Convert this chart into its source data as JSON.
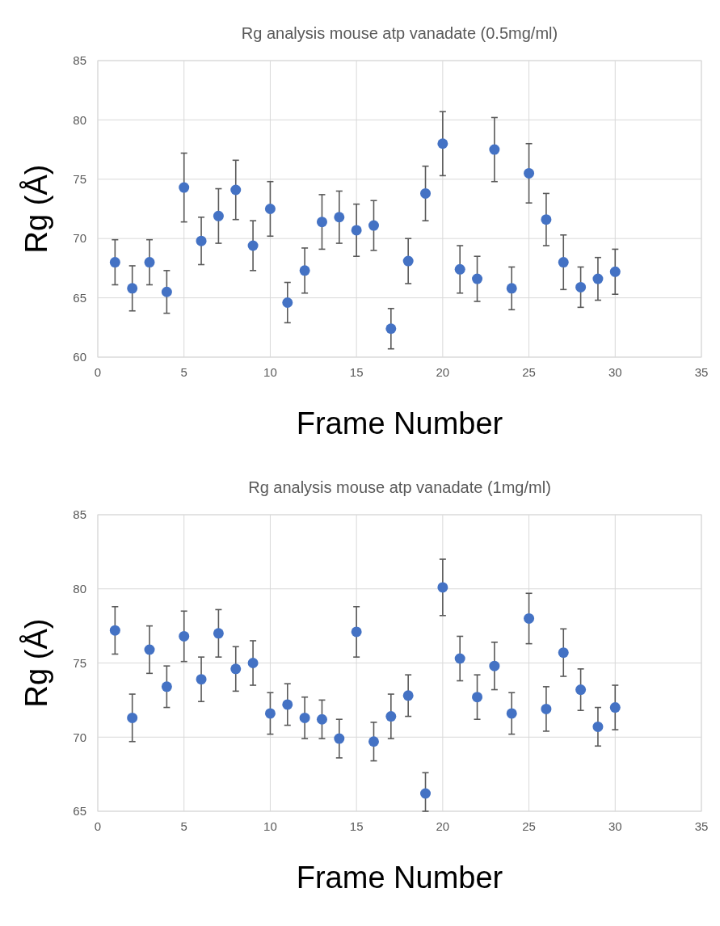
{
  "chart_data": [
    {
      "type": "scatter",
      "title": "Rg analysis mouse atp vanadate (0.5mg/ml)",
      "xlabel": "Frame Number",
      "ylabel": "Rg (Å)",
      "x": [
        1,
        2,
        3,
        4,
        5,
        6,
        7,
        8,
        9,
        10,
        11,
        12,
        13,
        14,
        15,
        16,
        17,
        18,
        19,
        20,
        21,
        22,
        23,
        24,
        25,
        26,
        27,
        28,
        29,
        30
      ],
      "series": [
        {
          "color": "#4472c4",
          "values": [
            68.0,
            65.8,
            68.0,
            65.5,
            74.3,
            69.8,
            71.9,
            74.1,
            69.4,
            72.5,
            64.6,
            67.3,
            71.4,
            71.8,
            70.7,
            71.1,
            62.4,
            68.1,
            73.8,
            78.0,
            67.4,
            66.6,
            77.5,
            65.8,
            75.5,
            71.6,
            68.0,
            65.9,
            66.6,
            67.2
          ],
          "errors": [
            1.9,
            1.9,
            1.9,
            1.8,
            2.9,
            2.0,
            2.3,
            2.5,
            2.1,
            2.3,
            1.7,
            1.9,
            2.3,
            2.2,
            2.2,
            2.1,
            1.7,
            1.9,
            2.3,
            2.7,
            2.0,
            1.9,
            2.7,
            1.8,
            2.5,
            2.2,
            2.3,
            1.7,
            1.8,
            1.9
          ]
        }
      ],
      "xlim": [
        0,
        35
      ],
      "xticks": [
        0,
        5,
        10,
        15,
        20,
        25,
        30,
        35
      ],
      "ylim": [
        60,
        85
      ],
      "yticks": [
        60,
        65,
        70,
        75,
        80,
        85
      ],
      "grid": true,
      "marker": "circle"
    },
    {
      "type": "scatter",
      "title": "Rg analysis mouse atp vanadate (1mg/ml)",
      "xlabel": "Frame Number",
      "ylabel": "Rg (Å)",
      "x": [
        1,
        2,
        3,
        4,
        5,
        6,
        7,
        8,
        9,
        10,
        11,
        12,
        13,
        14,
        15,
        16,
        17,
        18,
        19,
        20,
        21,
        22,
        23,
        24,
        25,
        26,
        27,
        28,
        29,
        30
      ],
      "series": [
        {
          "color": "#4472c4",
          "values": [
            77.2,
            71.3,
            75.9,
            73.4,
            76.8,
            73.9,
            77.0,
            74.6,
            75.0,
            71.6,
            72.2,
            71.3,
            71.2,
            69.9,
            77.1,
            69.7,
            71.4,
            72.8,
            66.2,
            80.1,
            75.3,
            72.7,
            74.8,
            71.6,
            78.0,
            71.9,
            75.7,
            73.2,
            70.7,
            72.0
          ],
          "errors": [
            1.6,
            1.6,
            1.6,
            1.4,
            1.7,
            1.5,
            1.6,
            1.5,
            1.5,
            1.4,
            1.4,
            1.4,
            1.3,
            1.3,
            1.7,
            1.3,
            1.5,
            1.4,
            [
              65,
              67.6
            ],
            1.9,
            1.5,
            1.5,
            1.6,
            1.4,
            1.7,
            1.5,
            1.6,
            1.4,
            1.3,
            1.5
          ]
        }
      ],
      "xlim": [
        0,
        35
      ],
      "xticks": [
        0,
        5,
        10,
        15,
        20,
        25,
        30,
        35
      ],
      "ylim": [
        65,
        85
      ],
      "yticks": [
        65,
        70,
        75,
        80,
        85
      ],
      "grid": true,
      "marker": "circle"
    }
  ]
}
